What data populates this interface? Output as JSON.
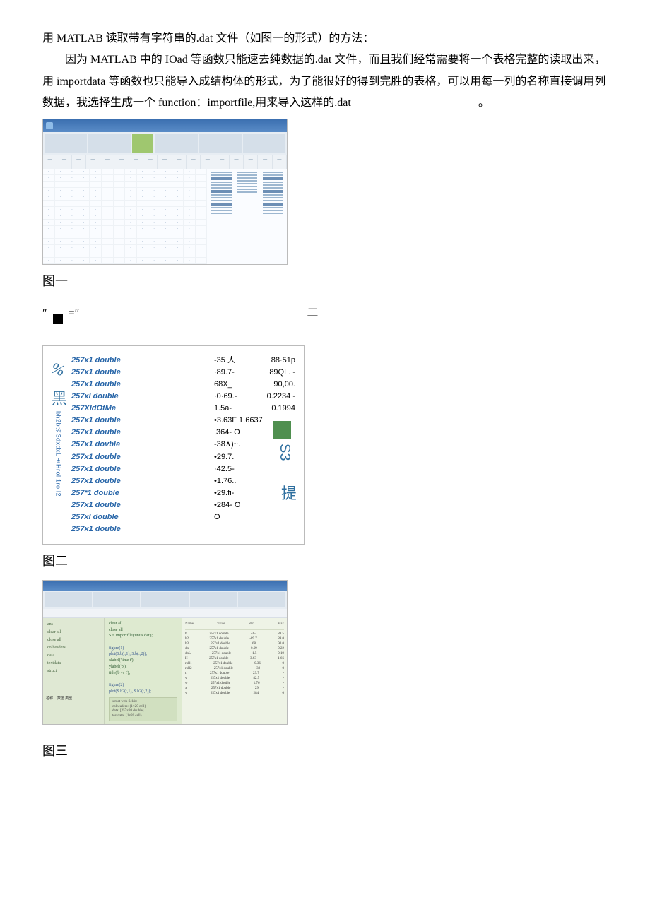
{
  "intro": {
    "line1": "用 MATLAB 读取带有字符串的.dat 文件（如图一的形式）的方法：",
    "body": "因为 MATLAB 中的 IOad 等函数只能速去纯数据的.dat 文件，而且我们经常需要将一个表格完整的读取出来，用 importdata 等函数也只能导入成结构体的形式，为了能很好的得到完胜的表格，可以用每一列的名称直接调用列数据，我选择生成一个 function：importfile,用来导入这样的.dat"
  },
  "labels": {
    "fig1": "图一",
    "fig2": "图二",
    "fig3": "图三"
  },
  "underline": {
    "q1": "″",
    "eq": "=″",
    "cjk": "二"
  },
  "fig1": {
    "headers": [
      "—",
      "—",
      "—",
      "—",
      "—",
      "—",
      "—",
      "—",
      "—",
      "—",
      "—",
      "—",
      "—",
      "—",
      "—",
      "—",
      "—"
    ],
    "rows": 15,
    "cols": 14
  },
  "fig2": {
    "pct": "%",
    "cjk": "黑",
    "vlabel": "bh2b¼3dxdxL±Hroll1roll2",
    "mid": [
      "257x1  double",
      "257x1  double",
      "257x1  double",
      "257xI double",
      "257XIdOtMe",
      "257x1 double",
      "257x1  double",
      "257x1  dovble",
      "257x1  double",
      "257x1 double",
      "257x1  double",
      "257*1  double",
      "257x1  double",
      "257xI double",
      "257κ1 double"
    ],
    "right": [
      [
        "-35 人",
        "88·51p"
      ],
      [
        "·89.7-",
        "89QL. -"
      ],
      [
        "68X_",
        "90,00."
      ],
      [
        "·0·69.-",
        "0.2234 -"
      ],
      [
        "1.5a-",
        "0.1994"
      ],
      [
        "•3.63F 1.6637",
        ""
      ],
      [
        ",364- O",
        ""
      ],
      [
        "-38∧)~.",
        ""
      ],
      [
        "•29.7.",
        ""
      ],
      [
        "·42.5-",
        ""
      ],
      [
        "•1.76..",
        ""
      ],
      [
        "•29.fi-",
        ""
      ],
      [
        "•284- O",
        ""
      ],
      [
        "O",
        ""
      ]
    ],
    "s3": "S3",
    "ti": "提"
  },
  "fig3": {
    "left_items": [
      "ans",
      "clear all",
      "close all",
      "colheaders",
      "data",
      "textdata",
      "struct"
    ],
    "left_bottom": [
      "名称",
      "数值 类型"
    ],
    "center": [
      "clear all",
      "close all",
      "S = importfile('units.dat');",
      "",
      "figure(1)",
      "plot(S.b(:,1), S.b(:,2));",
      "xlabel('time t');",
      "ylabel('b');",
      "title('b vs t');",
      "",
      "figure(2)",
      "plot(S.h2(:,1), S.h2(:,2));"
    ],
    "center_box": [
      "struct with fields:",
      "  colheaders: {1×20 cell}",
      "  data: [257×20 double]",
      "  textdata: {1×20 cell}"
    ],
    "right_header": [
      "Name",
      "Value",
      "Min",
      "Max"
    ],
    "right_rows": [
      [
        "b",
        "257x1 double",
        "-35",
        "88.5"
      ],
      [
        "h2",
        "257x1 double",
        "-89.7",
        "89.0"
      ],
      [
        "b3",
        "257x1 double",
        "68",
        "90.0"
      ],
      [
        "dx",
        "257x1 double",
        "-0.69",
        "0.22"
      ],
      [
        "dxL",
        "257x1 double",
        "1.5",
        "0.19"
      ],
      [
        "H",
        "257x1 double",
        "3.63",
        "1.66"
      ],
      [
        "roll1",
        "257x1 double",
        "0.36",
        "0"
      ],
      [
        "roll2",
        "257x1 double",
        "-38",
        "0"
      ],
      [
        "t",
        "257x1 double",
        "29.7",
        "-"
      ],
      [
        "v",
        "257x1 double",
        "42.5",
        "-"
      ],
      [
        "w",
        "257x1 double",
        "1.76",
        "-"
      ],
      [
        "x",
        "257x1 double",
        "29",
        "-"
      ],
      [
        "y",
        "257x1 double",
        "284",
        "0"
      ]
    ]
  }
}
